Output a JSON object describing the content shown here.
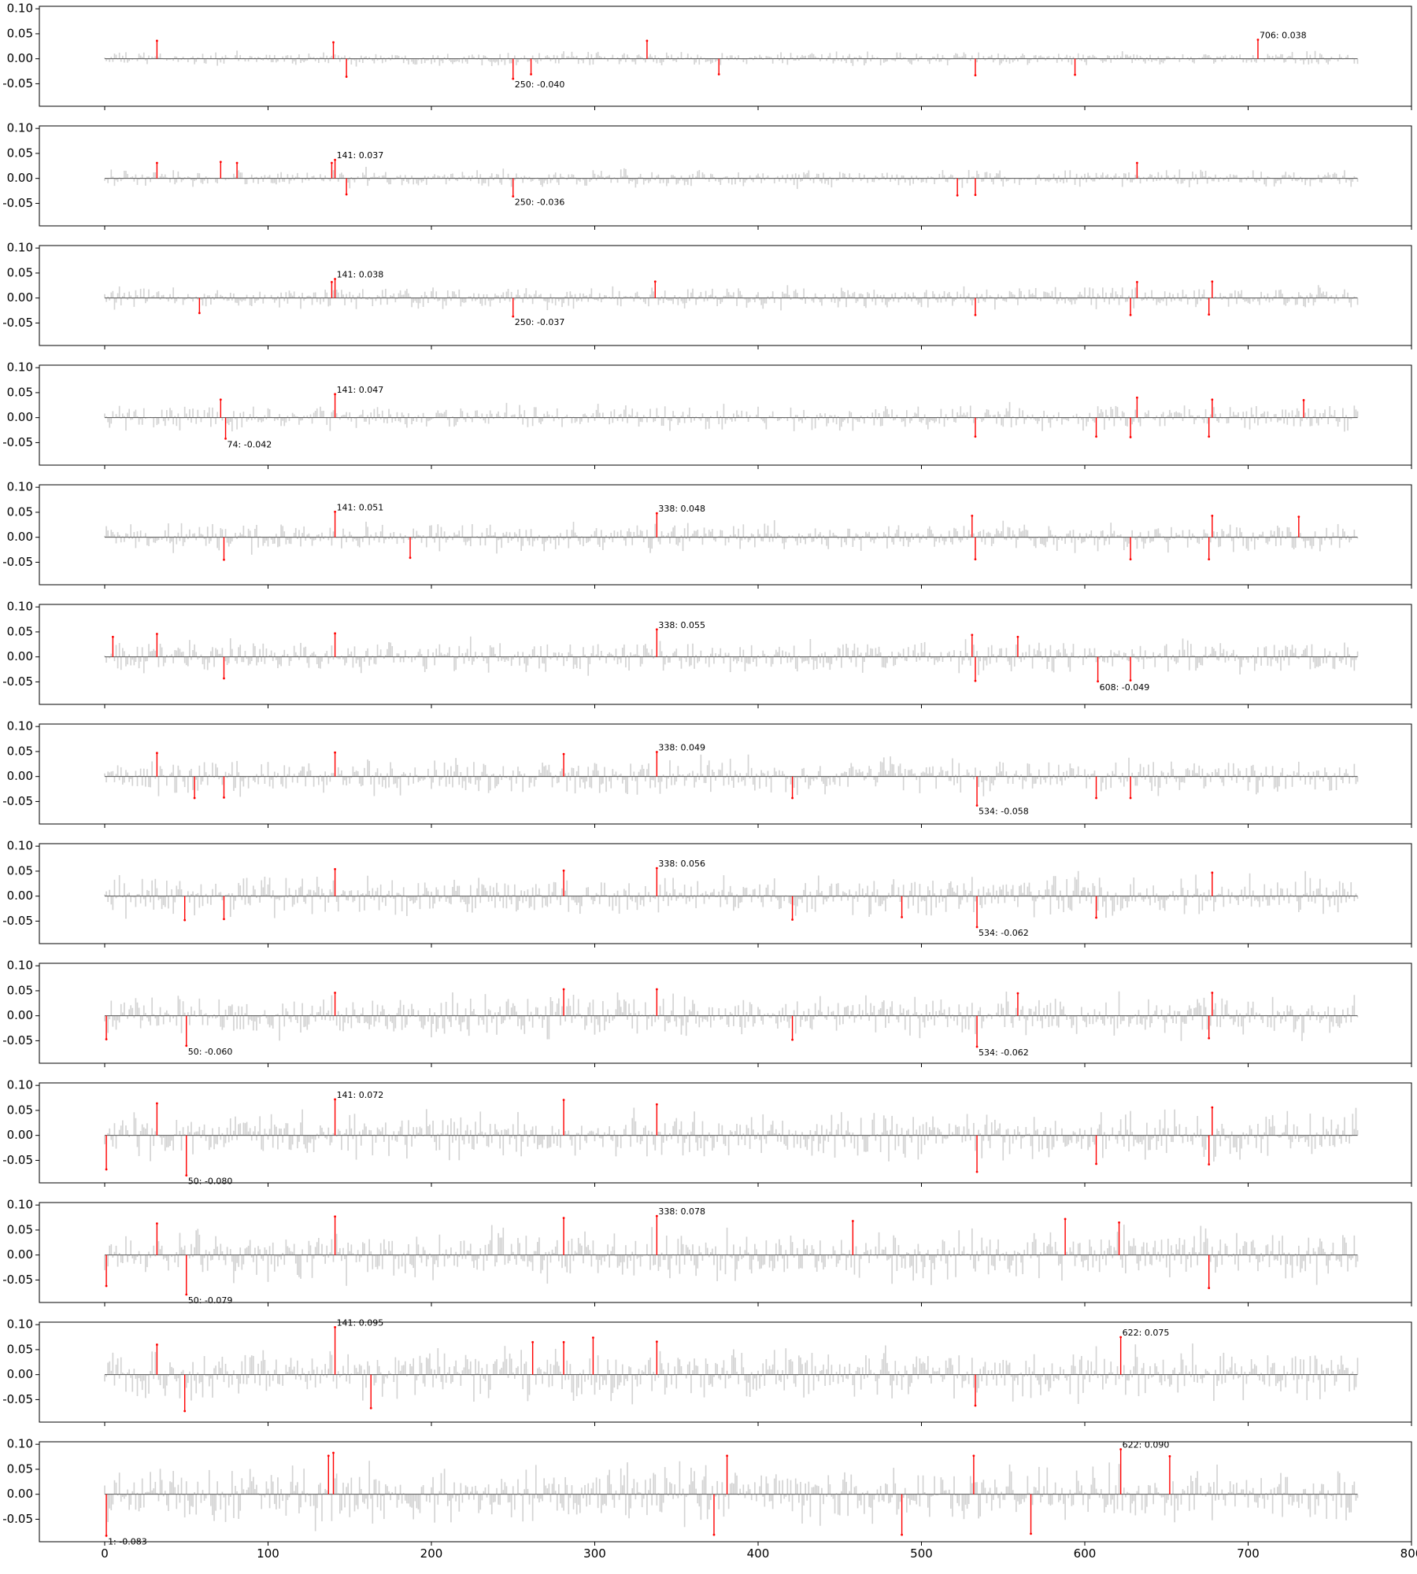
{
  "chart_data": {
    "type": "bar",
    "layout": "13 vertically stacked subplots sharing the x axis",
    "x_range": [
      -40,
      800
    ],
    "y_range": [
      -0.095,
      0.105
    ],
    "n_positions": 768,
    "x_ticks": [
      "0",
      "100",
      "200",
      "300",
      "400",
      "500",
      "600",
      "700",
      "800"
    ],
    "y_ticks": [
      "0.10",
      "0.05",
      "0.00",
      "-0.05"
    ],
    "colors": {
      "background_bar": "#d3d3d3",
      "highlight_bar": "#ff0000",
      "baseline": "#555555",
      "axes": "#000000"
    },
    "panels": [
      {
        "highlights": [
          {
            "x": 32,
            "y": 0.036
          },
          {
            "x": 140,
            "y": 0.033
          },
          {
            "x": 148,
            "y": -0.036
          },
          {
            "x": 250,
            "y": -0.04
          },
          {
            "x": 261,
            "y": -0.031
          },
          {
            "x": 332,
            "y": 0.036
          },
          {
            "x": 376,
            "y": -0.031
          },
          {
            "x": 533,
            "y": -0.033
          },
          {
            "x": 594,
            "y": -0.032
          },
          {
            "x": 706,
            "y": 0.038
          }
        ],
        "annotations": [
          {
            "x": 706,
            "y": 0.038,
            "text": "706: 0.038"
          },
          {
            "x": 250,
            "y": -0.04,
            "text": "250: -0.040"
          }
        ]
      },
      {
        "highlights": [
          {
            "x": 32,
            "y": 0.031
          },
          {
            "x": 71,
            "y": 0.033
          },
          {
            "x": 81,
            "y": 0.031
          },
          {
            "x": 139,
            "y": 0.031
          },
          {
            "x": 141,
            "y": 0.037
          },
          {
            "x": 148,
            "y": -0.032
          },
          {
            "x": 250,
            "y": -0.036
          },
          {
            "x": 522,
            "y": -0.034
          },
          {
            "x": 533,
            "y": -0.033
          },
          {
            "x": 632,
            "y": 0.031
          }
        ],
        "annotations": [
          {
            "x": 141,
            "y": 0.037,
            "text": "141: 0.037"
          },
          {
            "x": 250,
            "y": -0.036,
            "text": "250: -0.036"
          }
        ]
      },
      {
        "highlights": [
          {
            "x": 58,
            "y": -0.03
          },
          {
            "x": 139,
            "y": 0.032
          },
          {
            "x": 141,
            "y": 0.038
          },
          {
            "x": 250,
            "y": -0.037
          },
          {
            "x": 337,
            "y": 0.033
          },
          {
            "x": 533,
            "y": -0.034
          },
          {
            "x": 628,
            "y": -0.034
          },
          {
            "x": 632,
            "y": 0.032
          },
          {
            "x": 676,
            "y": -0.033
          },
          {
            "x": 678,
            "y": 0.033
          }
        ],
        "annotations": [
          {
            "x": 141,
            "y": 0.038,
            "text": "141: 0.038"
          },
          {
            "x": 250,
            "y": -0.037,
            "text": "250: -0.037"
          }
        ]
      },
      {
        "highlights": [
          {
            "x": 71,
            "y": 0.036
          },
          {
            "x": 74,
            "y": -0.042
          },
          {
            "x": 141,
            "y": 0.047
          },
          {
            "x": 533,
            "y": -0.038
          },
          {
            "x": 607,
            "y": -0.038
          },
          {
            "x": 628,
            "y": -0.039
          },
          {
            "x": 632,
            "y": 0.04
          },
          {
            "x": 676,
            "y": -0.038
          },
          {
            "x": 678,
            "y": 0.036
          },
          {
            "x": 734,
            "y": 0.035
          }
        ],
        "annotations": [
          {
            "x": 141,
            "y": 0.047,
            "text": "141: 0.047"
          },
          {
            "x": 74,
            "y": -0.042,
            "text": "74: -0.042"
          }
        ]
      },
      {
        "highlights": [
          {
            "x": 73,
            "y": -0.045
          },
          {
            "x": 141,
            "y": 0.051
          },
          {
            "x": 187,
            "y": -0.041
          },
          {
            "x": 338,
            "y": 0.048
          },
          {
            "x": 531,
            "y": 0.043
          },
          {
            "x": 533,
            "y": -0.044
          },
          {
            "x": 628,
            "y": -0.044
          },
          {
            "x": 676,
            "y": -0.044
          },
          {
            "x": 678,
            "y": 0.043
          },
          {
            "x": 731,
            "y": 0.041
          }
        ],
        "annotations": [
          {
            "x": 141,
            "y": 0.051,
            "text": "141: 0.051"
          },
          {
            "x": 338,
            "y": 0.048,
            "text": "338: 0.048"
          }
        ]
      },
      {
        "highlights": [
          {
            "x": 5,
            "y": 0.04
          },
          {
            "x": 32,
            "y": 0.046
          },
          {
            "x": 73,
            "y": -0.043
          },
          {
            "x": 141,
            "y": 0.047
          },
          {
            "x": 338,
            "y": 0.055
          },
          {
            "x": 531,
            "y": 0.044
          },
          {
            "x": 533,
            "y": -0.048
          },
          {
            "x": 559,
            "y": 0.04
          },
          {
            "x": 608,
            "y": -0.049
          },
          {
            "x": 628,
            "y": -0.047
          }
        ],
        "annotations": [
          {
            "x": 338,
            "y": 0.055,
            "text": "338: 0.055"
          },
          {
            "x": 608,
            "y": -0.049,
            "text": "608: -0.049"
          }
        ]
      },
      {
        "highlights": [
          {
            "x": 32,
            "y": 0.047
          },
          {
            "x": 55,
            "y": -0.043
          },
          {
            "x": 73,
            "y": -0.042
          },
          {
            "x": 141,
            "y": 0.048
          },
          {
            "x": 281,
            "y": 0.045
          },
          {
            "x": 338,
            "y": 0.049
          },
          {
            "x": 421,
            "y": -0.043
          },
          {
            "x": 534,
            "y": -0.058
          },
          {
            "x": 607,
            "y": -0.043
          },
          {
            "x": 628,
            "y": -0.043
          }
        ],
        "annotations": [
          {
            "x": 338,
            "y": 0.049,
            "text": "338: 0.049"
          },
          {
            "x": 534,
            "y": -0.058,
            "text": "534: -0.058"
          }
        ]
      },
      {
        "highlights": [
          {
            "x": 49,
            "y": -0.048
          },
          {
            "x": 73,
            "y": -0.046
          },
          {
            "x": 141,
            "y": 0.054
          },
          {
            "x": 281,
            "y": 0.051
          },
          {
            "x": 338,
            "y": 0.056
          },
          {
            "x": 421,
            "y": -0.047
          },
          {
            "x": 488,
            "y": -0.042
          },
          {
            "x": 534,
            "y": -0.062
          },
          {
            "x": 607,
            "y": -0.043
          },
          {
            "x": 678,
            "y": 0.047
          }
        ],
        "annotations": [
          {
            "x": 338,
            "y": 0.056,
            "text": "338: 0.056"
          },
          {
            "x": 534,
            "y": -0.062,
            "text": "534: -0.062"
          }
        ]
      },
      {
        "highlights": [
          {
            "x": 1,
            "y": -0.047
          },
          {
            "x": 50,
            "y": -0.06
          },
          {
            "x": 141,
            "y": 0.046
          },
          {
            "x": 281,
            "y": 0.053
          },
          {
            "x": 338,
            "y": 0.053
          },
          {
            "x": 421,
            "y": -0.048
          },
          {
            "x": 534,
            "y": -0.062
          },
          {
            "x": 559,
            "y": 0.045
          },
          {
            "x": 676,
            "y": -0.045
          },
          {
            "x": 678,
            "y": 0.046
          }
        ],
        "annotations": [
          {
            "x": 50,
            "y": -0.06,
            "text": "50: -0.060"
          },
          {
            "x": 534,
            "y": -0.062,
            "text": "534: -0.062"
          }
        ]
      },
      {
        "highlights": [
          {
            "x": 1,
            "y": -0.068
          },
          {
            "x": 32,
            "y": 0.064
          },
          {
            "x": 50,
            "y": -0.08
          },
          {
            "x": 141,
            "y": 0.072
          },
          {
            "x": 281,
            "y": 0.071
          },
          {
            "x": 338,
            "y": 0.062
          },
          {
            "x": 534,
            "y": -0.073
          },
          {
            "x": 607,
            "y": -0.057
          },
          {
            "x": 676,
            "y": -0.058
          },
          {
            "x": 678,
            "y": 0.056
          }
        ],
        "annotations": [
          {
            "x": 141,
            "y": 0.072,
            "text": "141: 0.072"
          },
          {
            "x": 50,
            "y": -0.08,
            "text": "50: -0.080"
          }
        ]
      },
      {
        "highlights": [
          {
            "x": 1,
            "y": -0.062
          },
          {
            "x": 32,
            "y": 0.063
          },
          {
            "x": 50,
            "y": -0.079
          },
          {
            "x": 141,
            "y": 0.077
          },
          {
            "x": 281,
            "y": 0.074
          },
          {
            "x": 338,
            "y": 0.078
          },
          {
            "x": 458,
            "y": 0.068
          },
          {
            "x": 588,
            "y": 0.072
          },
          {
            "x": 621,
            "y": 0.065
          },
          {
            "x": 676,
            "y": -0.066
          }
        ],
        "annotations": [
          {
            "x": 338,
            "y": 0.078,
            "text": "338: 0.078"
          },
          {
            "x": 50,
            "y": -0.079,
            "text": "50: -0.079"
          }
        ]
      },
      {
        "highlights": [
          {
            "x": 32,
            "y": 0.06
          },
          {
            "x": 49,
            "y": -0.073
          },
          {
            "x": 141,
            "y": 0.095
          },
          {
            "x": 163,
            "y": -0.067
          },
          {
            "x": 262,
            "y": 0.065
          },
          {
            "x": 281,
            "y": 0.065
          },
          {
            "x": 299,
            "y": 0.074
          },
          {
            "x": 338,
            "y": 0.066
          },
          {
            "x": 533,
            "y": -0.062
          },
          {
            "x": 622,
            "y": 0.075
          }
        ],
        "annotations": [
          {
            "x": 141,
            "y": 0.095,
            "text": "141: 0.095"
          },
          {
            "x": 622,
            "y": 0.075,
            "text": "622: 0.075"
          }
        ]
      },
      {
        "highlights": [
          {
            "x": 1,
            "y": -0.083
          },
          {
            "x": 137,
            "y": 0.077
          },
          {
            "x": 140,
            "y": 0.083
          },
          {
            "x": 373,
            "y": -0.081
          },
          {
            "x": 381,
            "y": 0.077
          },
          {
            "x": 488,
            "y": -0.081
          },
          {
            "x": 532,
            "y": 0.077
          },
          {
            "x": 567,
            "y": -0.079
          },
          {
            "x": 622,
            "y": 0.09
          },
          {
            "x": 652,
            "y": 0.076
          }
        ],
        "annotations": [
          {
            "x": 622,
            "y": 0.09,
            "text": "622: 0.090"
          },
          {
            "x": 1,
            "y": -0.083,
            "text": "1: -0.083"
          }
        ]
      }
    ]
  }
}
